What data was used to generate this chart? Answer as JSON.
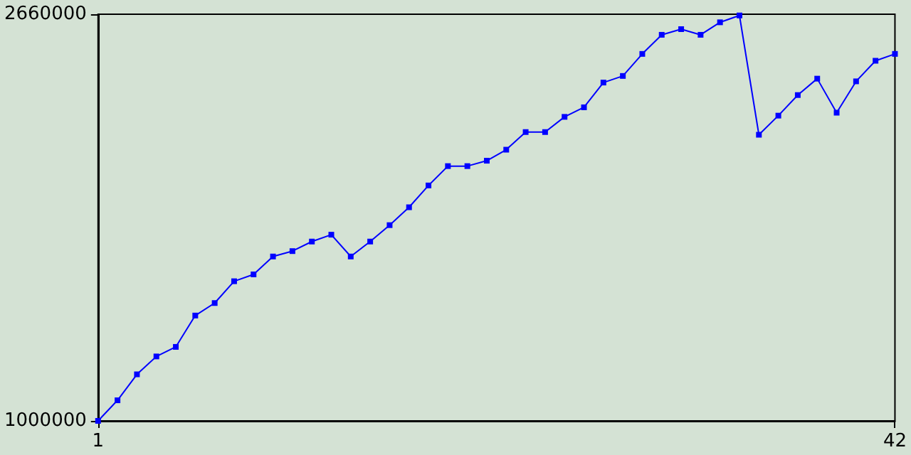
{
  "chart_data": {
    "type": "line",
    "x": [
      1,
      2,
      3,
      4,
      5,
      6,
      7,
      8,
      9,
      10,
      11,
      12,
      13,
      14,
      15,
      16,
      17,
      18,
      19,
      20,
      21,
      22,
      23,
      24,
      25,
      26,
      27,
      28,
      29,
      30,
      31,
      32,
      33,
      34,
      35,
      36,
      37,
      38,
      39,
      40,
      41,
      42
    ],
    "series": [
      {
        "color": "#0000ff",
        "values": [
          1000000,
          1084000,
          1190000,
          1263000,
          1302000,
          1430000,
          1481000,
          1570000,
          1598000,
          1671000,
          1693000,
          1732000,
          1760000,
          1671000,
          1732000,
          1799000,
          1872000,
          1961000,
          2040000,
          2040000,
          2062000,
          2107000,
          2179000,
          2179000,
          2241000,
          2280000,
          2381000,
          2408000,
          2498000,
          2576000,
          2599000,
          2576000,
          2627000,
          2655000,
          2168000,
          2246000,
          2330000,
          2397000,
          2258000,
          2386000,
          2470000,
          2498000
        ]
      }
    ],
    "xlim": [
      1,
      42
    ],
    "xticks": [
      1,
      42
    ],
    "ylim": [
      1000000,
      2660000
    ],
    "yticks": [
      1000000,
      2660000
    ],
    "grid": false,
    "marker": "square",
    "line_style": "solid"
  }
}
